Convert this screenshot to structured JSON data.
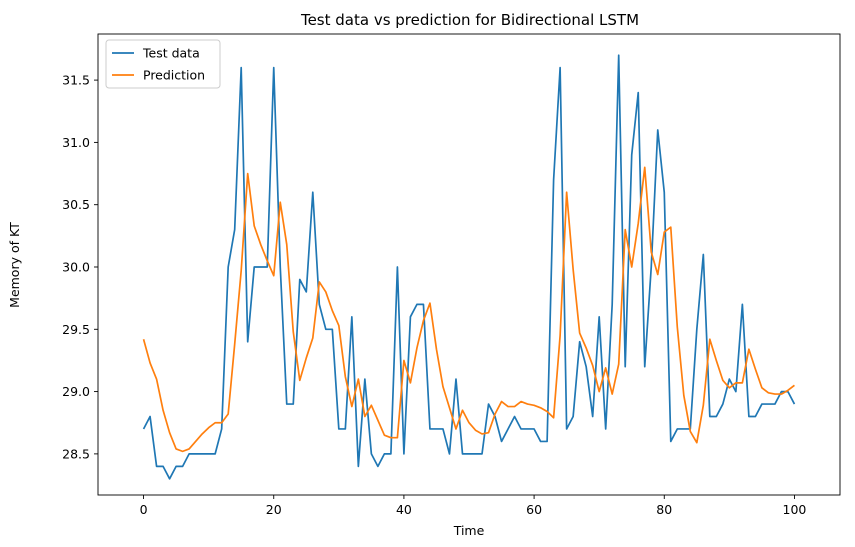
{
  "chart_data": {
    "type": "line",
    "title": "Test data vs prediction for Bidirectional LSTM",
    "xlabel": "Time",
    "ylabel": "Memory of KT",
    "xlim": [
      -7,
      107
    ],
    "ylim": [
      28.17,
      31.87
    ],
    "x_ticks": [
      0,
      20,
      40,
      60,
      80,
      100
    ],
    "x_tick_labels": [
      "0",
      "20",
      "40",
      "60",
      "80",
      "100"
    ],
    "y_ticks": [
      28.5,
      29.0,
      29.5,
      30.0,
      30.5,
      31.0,
      31.5
    ],
    "y_tick_labels": [
      "28.5",
      "29.0",
      "29.5",
      "30.0",
      "30.5",
      "31.0",
      "31.5"
    ],
    "grid": false,
    "legend_position": "upper-left",
    "x": [
      0,
      1,
      2,
      3,
      4,
      5,
      6,
      7,
      8,
      9,
      10,
      11,
      12,
      13,
      14,
      15,
      16,
      17,
      18,
      19,
      20,
      21,
      22,
      23,
      24,
      25,
      26,
      27,
      28,
      29,
      30,
      31,
      32,
      33,
      34,
      35,
      36,
      37,
      38,
      39,
      40,
      41,
      42,
      43,
      44,
      45,
      46,
      47,
      48,
      49,
      50,
      51,
      52,
      53,
      54,
      55,
      56,
      57,
      58,
      59,
      60,
      61,
      62,
      63,
      64,
      65,
      66,
      67,
      68,
      69,
      70,
      71,
      72,
      73,
      74,
      75,
      76,
      77,
      78,
      79,
      80,
      81,
      82,
      83,
      84,
      85,
      86,
      87,
      88,
      89,
      90,
      91,
      92,
      93,
      94,
      95,
      96,
      97,
      98,
      99,
      100
    ],
    "series": [
      {
        "name": "Test data",
        "color": "#1f77b4",
        "values": [
          28.7,
          28.8,
          28.4,
          28.4,
          28.3,
          28.4,
          28.4,
          28.5,
          28.5,
          28.5,
          28.5,
          28.5,
          28.7,
          30.0,
          30.3,
          31.6,
          29.4,
          30.0,
          30.0,
          30.0,
          31.6,
          30.0,
          28.9,
          28.9,
          29.9,
          29.8,
          30.6,
          29.7,
          29.5,
          29.5,
          28.7,
          28.7,
          29.6,
          28.4,
          29.1,
          28.5,
          28.4,
          28.5,
          28.5,
          30.0,
          28.5,
          29.6,
          29.7,
          29.7,
          28.7,
          28.7,
          28.7,
          28.5,
          29.1,
          28.5,
          28.5,
          28.5,
          28.5,
          28.9,
          28.8,
          28.6,
          28.7,
          28.8,
          28.7,
          28.7,
          28.7,
          28.6,
          28.6,
          30.7,
          31.6,
          28.7,
          28.8,
          29.4,
          29.2,
          28.8,
          29.6,
          28.7,
          29.7,
          31.7,
          29.2,
          30.9,
          31.4,
          29.2,
          30.0,
          31.1,
          30.6,
          28.6,
          28.7,
          28.7,
          28.7,
          29.5,
          30.1,
          28.8,
          28.8,
          28.9,
          29.1,
          29.0,
          29.7,
          28.8,
          28.8,
          28.9,
          28.9,
          28.9,
          29.0,
          29.0,
          28.9
        ]
      },
      {
        "name": "Prediction",
        "color": "#ff7f0e",
        "values": [
          29.42,
          29.23,
          29.1,
          28.85,
          28.67,
          28.54,
          28.52,
          28.54,
          28.6,
          28.66,
          28.71,
          28.75,
          28.75,
          28.82,
          29.38,
          29.97,
          30.75,
          30.33,
          30.18,
          30.05,
          29.93,
          30.52,
          30.18,
          29.48,
          29.09,
          29.27,
          29.43,
          29.88,
          29.8,
          29.65,
          29.53,
          29.12,
          28.88,
          29.1,
          28.8,
          28.89,
          28.77,
          28.65,
          28.63,
          28.63,
          29.25,
          29.07,
          29.35,
          29.57,
          29.71,
          29.34,
          29.04,
          28.87,
          28.7,
          28.85,
          28.75,
          28.69,
          28.66,
          28.67,
          28.82,
          28.92,
          28.88,
          28.88,
          28.92,
          28.9,
          28.89,
          28.87,
          28.84,
          28.79,
          29.45,
          30.6,
          29.98,
          29.47,
          29.35,
          29.21,
          29.0,
          29.19,
          28.98,
          29.22,
          30.3,
          30.0,
          30.35,
          30.8,
          30.12,
          29.94,
          30.28,
          30.32,
          29.52,
          28.97,
          28.68,
          28.59,
          28.89,
          29.42,
          29.25,
          29.09,
          29.03,
          29.07,
          29.07,
          29.34,
          29.18,
          29.03,
          28.99,
          28.98,
          28.98,
          29.01,
          29.05
        ]
      }
    ]
  }
}
